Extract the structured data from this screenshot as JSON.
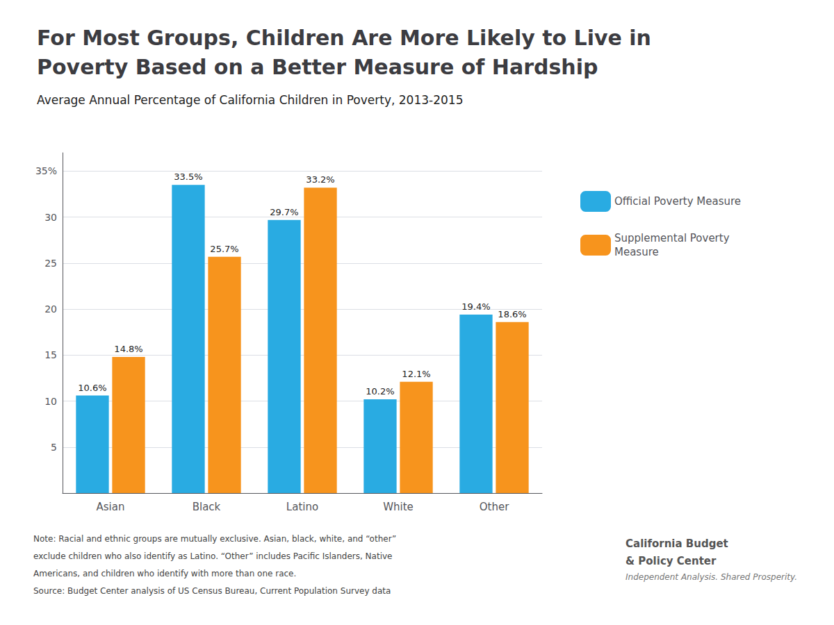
{
  "chart_data": {
    "type": "bar",
    "title": "For Most Groups, Children Are More Likely to Live in\nPoverty Based on a Better Measure of Hardship",
    "subtitle": "Average Annual Percentage of California Children in Poverty, 2013-2015",
    "categories": [
      "Asian",
      "Black",
      "Latino",
      "White",
      "Other"
    ],
    "series": [
      {
        "name": "Official Poverty Measure",
        "color": "#29abe2",
        "values": [
          10.6,
          33.5,
          29.7,
          10.2,
          19.4
        ],
        "value_labels": [
          "10.6%",
          "33.5%",
          "29.7%",
          "10.2%",
          "19.4%"
        ]
      },
      {
        "name": "Supplemental Poverty\nMeasure",
        "color": "#f7941d",
        "values": [
          14.8,
          25.7,
          33.2,
          12.1,
          18.6
        ],
        "value_labels": [
          "14.8%",
          "25.7%",
          "33.2%",
          "12.1%",
          "18.6%"
        ]
      }
    ],
    "ylim": [
      0,
      37
    ],
    "yticks": [
      {
        "value": 0,
        "label": ""
      },
      5,
      10,
      15,
      20,
      25,
      30,
      {
        "value": 35,
        "label": "35%"
      }
    ],
    "grid": true,
    "legend": "right",
    "data_labels": true,
    "annotations": [
      "Note: Racial and ethnic groups are mutually exclusive. Asian, black, white, and “other”",
      "exclude children who also identify as Latino. “Other” includes Pacific Islanders, Native",
      "Americans, and children who identify with more than one race.",
      "Source: Budget Center analysis of US Census Bureau, Current Population Survey data",
      "California Budget",
      "& Policy Center",
      "Independent Analysis. Shared Prosperity."
    ]
  }
}
